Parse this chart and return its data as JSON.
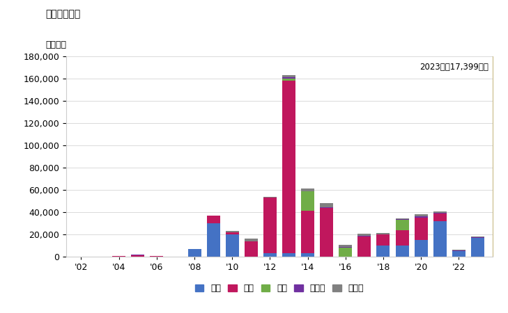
{
  "title": "輸入量の推移",
  "ylabel": "単位トン",
  "annotation": "2023年：17,399トン",
  "ylim": [
    0,
    180000
  ],
  "yticks": [
    0,
    20000,
    40000,
    60000,
    80000,
    100000,
    120000,
    140000,
    160000,
    180000
  ],
  "years": [
    2002,
    2003,
    2004,
    2005,
    2006,
    2007,
    2008,
    2009,
    2010,
    2011,
    2012,
    2013,
    2014,
    2015,
    2016,
    2017,
    2018,
    2019,
    2020,
    2021,
    2022,
    2023
  ],
  "xtick_labels": [
    "'02",
    "'04",
    "'06",
    "'08",
    "'10",
    "'12",
    "'14",
    "'16",
    "'18",
    "'20",
    "'22"
  ],
  "xtick_years": [
    2002,
    2004,
    2006,
    2008,
    2010,
    2012,
    2014,
    2016,
    2018,
    2020,
    2022
  ],
  "series": {
    "中国": [
      0,
      0,
      0,
      0,
      0,
      0,
      7000,
      30000,
      20000,
      0,
      3000,
      3000,
      3000,
      0,
      0,
      0,
      10000,
      10000,
      15000,
      32000,
      5000,
      17000
    ],
    "韓国": [
      0,
      0,
      500,
      1000,
      500,
      0,
      0,
      7000,
      2000,
      14000,
      50000,
      155000,
      38000,
      44000,
      0,
      18000,
      10000,
      14000,
      20000,
      7000,
      0,
      0
    ],
    "香港": [
      0,
      0,
      0,
      0,
      0,
      0,
      0,
      0,
      0,
      0,
      0,
      2000,
      18000,
      0,
      8000,
      0,
      0,
      9000,
      0,
      0,
      0,
      0
    ],
    "ドイツ": [
      0,
      0,
      0,
      1000,
      0,
      0,
      0,
      0,
      0,
      0,
      0,
      1000,
      0,
      500,
      500,
      500,
      0,
      500,
      1000,
      500,
      500,
      500
    ],
    "その他": [
      0,
      0,
      0,
      0,
      0,
      0,
      0,
      0,
      1000,
      2000,
      1000,
      2000,
      2000,
      3500,
      2000,
      2000,
      1000,
      1000,
      2000,
      1000,
      500,
      400
    ]
  },
  "colors": {
    "中国": "#4472C4",
    "韓国": "#C0175D",
    "香港": "#70AD47",
    "ドイツ": "#7030A0",
    "その他": "#808080"
  },
  "legend_order": [
    "中国",
    "韓国",
    "香港",
    "ドイツ",
    "その他"
  ],
  "background_color": "#FFFFFF",
  "plot_bg_color": "#FFFFFF",
  "border_color": "#C8B882"
}
